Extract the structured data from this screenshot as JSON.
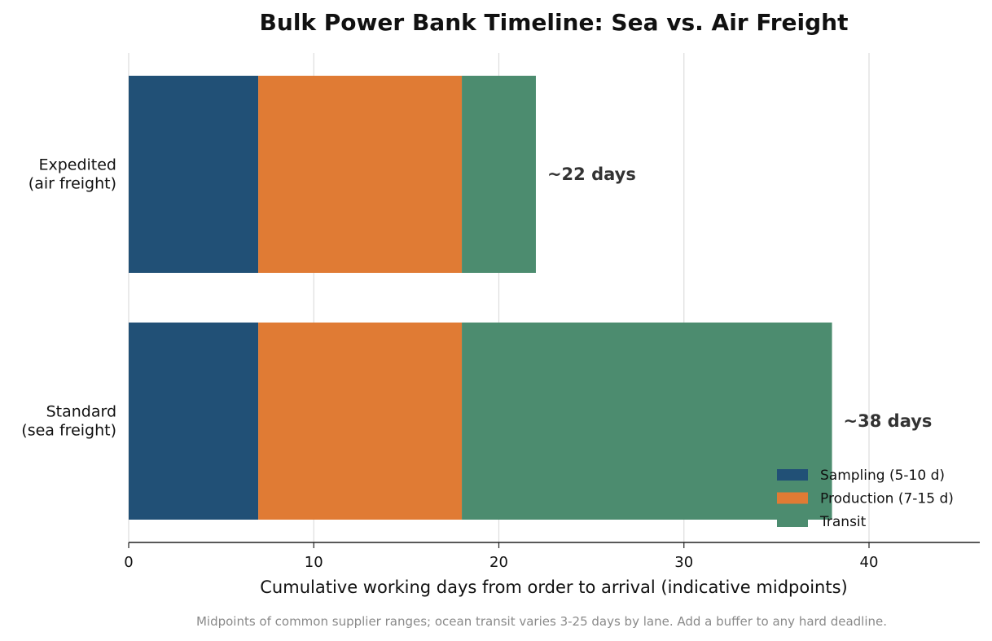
{
  "chart_data": {
    "type": "bar",
    "orientation": "horizontal",
    "stacked": true,
    "title": "Bulk Power Bank Timeline: Sea vs. Air Freight",
    "xlabel": "Cumulative working days from order to arrival (indicative midpoints)",
    "ylabel": "",
    "xlim": [
      0,
      46
    ],
    "x_ticks": [
      0,
      10,
      20,
      30,
      40
    ],
    "grid": "vertical",
    "categories": [
      {
        "key": "expedited",
        "lines": [
          "Expedited",
          "(air freight)"
        ],
        "total_label": "~22 days",
        "total": 22
      },
      {
        "key": "standard",
        "lines": [
          "Standard",
          "(sea freight)"
        ],
        "total_label": "~38 days",
        "total": 38
      }
    ],
    "series": [
      {
        "name": "Sampling (5-10 d)",
        "color": "#215076",
        "values": [
          7,
          7
        ]
      },
      {
        "name": "Production (7-15 d)",
        "color": "#e07b34",
        "values": [
          11,
          11
        ]
      },
      {
        "name": "Transit",
        "color": "#4c8c6f",
        "values": [
          4,
          20
        ]
      }
    ],
    "legend_position": "lower-right",
    "footnote": "Midpoints of common supplier ranges; ocean transit varies 3-25 days by lane. Add a buffer to any hard deadline."
  }
}
